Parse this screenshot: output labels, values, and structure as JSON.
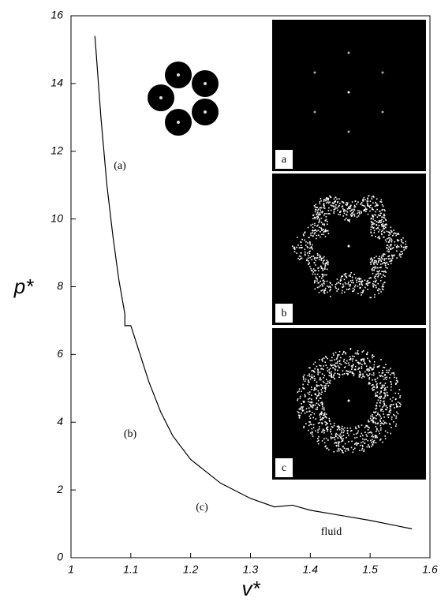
{
  "chart_data": {
    "type": "line",
    "x_label": "v*",
    "y_label": "p*",
    "x": [
      1.04,
      1.05,
      1.06,
      1.07,
      1.08,
      1.09,
      1.09,
      1.1,
      1.11,
      1.13,
      1.15,
      1.17,
      1.2,
      1.25,
      1.3,
      1.34,
      1.37,
      1.4,
      1.45,
      1.5,
      1.57
    ],
    "series": [
      {
        "color": "#000000",
        "values": [
          15.4,
          13,
          11,
          9.5,
          8.2,
          7.2,
          6.85,
          6.85,
          6.3,
          5.2,
          4.3,
          3.6,
          2.9,
          2.2,
          1.75,
          1.5,
          1.55,
          1.4,
          1.25,
          1.1,
          0.85
        ]
      }
    ],
    "xlim": [
      1,
      1.6
    ],
    "xticks": [
      1,
      1.1,
      1.2,
      1.3,
      1.4,
      1.5,
      1.6
    ],
    "ylim": [
      0,
      16
    ],
    "yticks": [
      0,
      2,
      4,
      6,
      8,
      10,
      12,
      14,
      16
    ],
    "annotations": [
      "(a)",
      "(b)",
      "(c)",
      "fluid"
    ],
    "inset_labels": [
      "a",
      "b",
      "c"
    ]
  }
}
